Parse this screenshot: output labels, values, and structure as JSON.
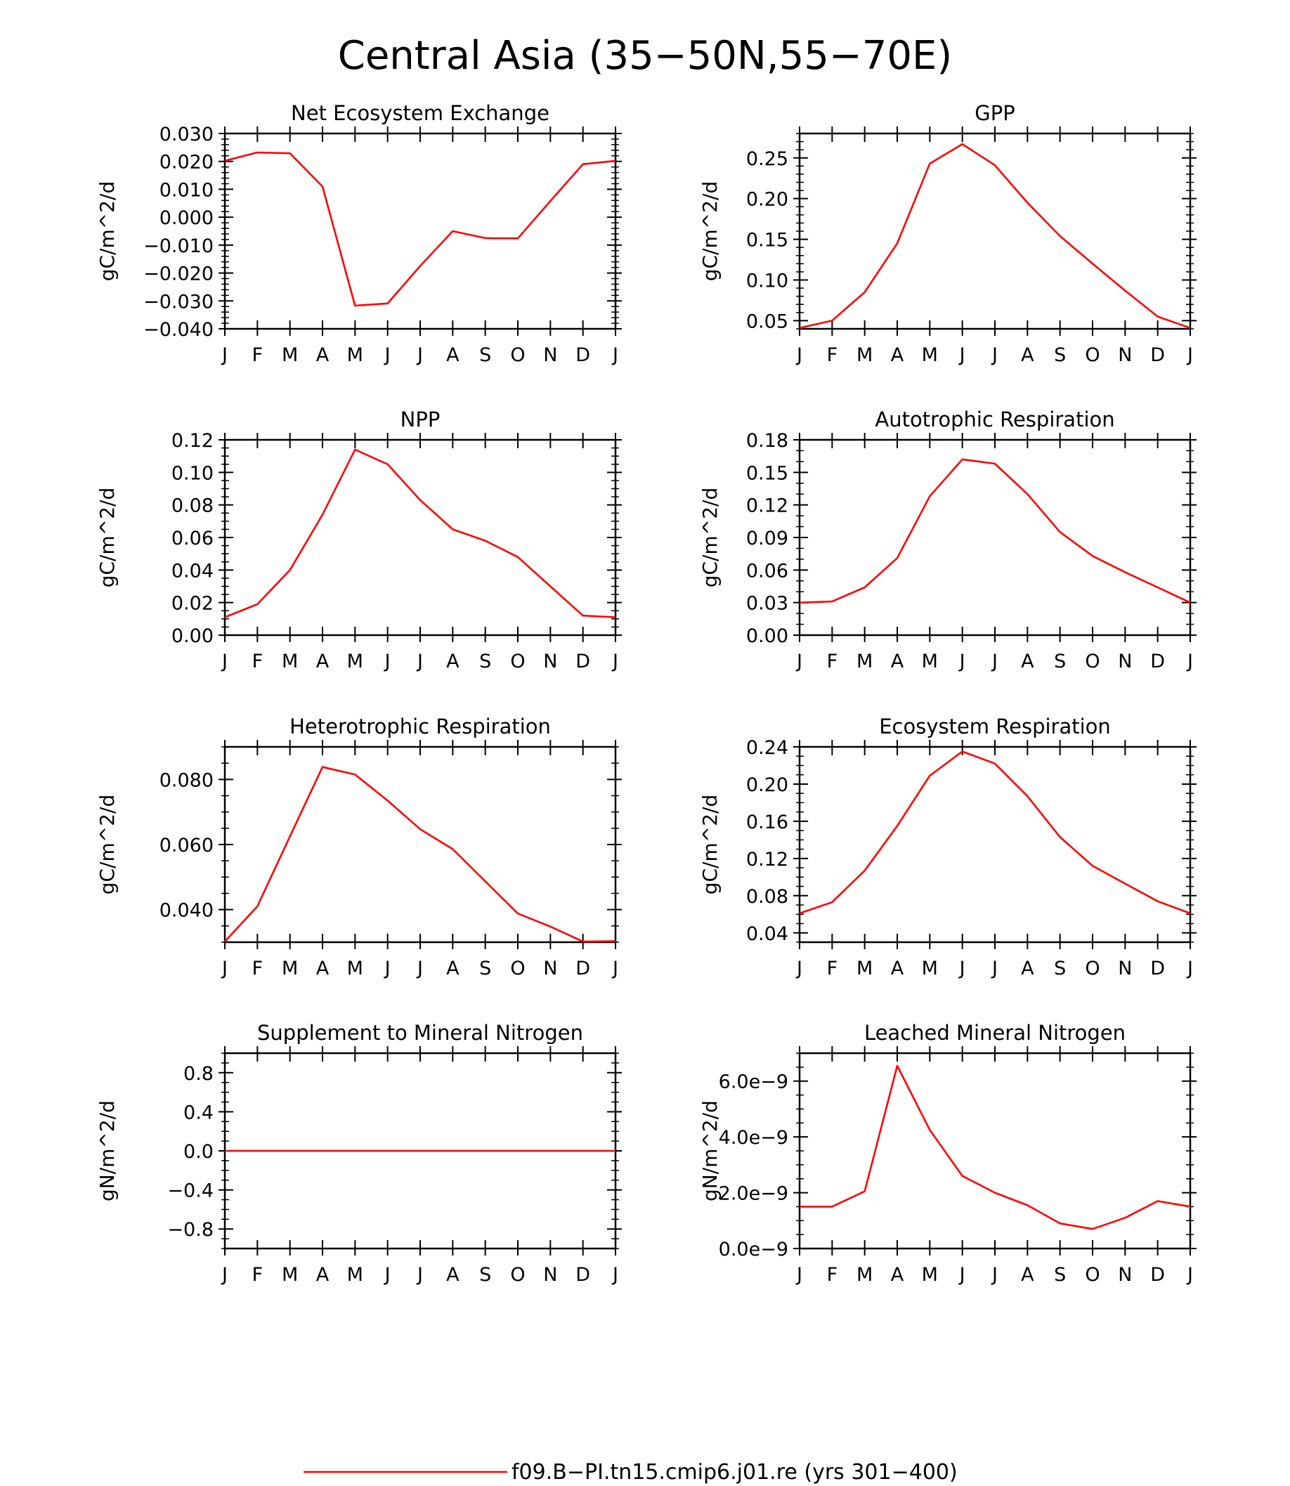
{
  "title": "Central Asia (35−50N,55−70E)",
  "legend": {
    "label": "f09.B−PI.tn15.cmip6.j01.re (yrs 301−400)",
    "color": "#ff0000"
  },
  "chart_data": [
    {
      "type": "line",
      "title": "Net Ecosystem Exchange",
      "ylabel": "gC/m^2/d",
      "categories": [
        "J",
        "F",
        "M",
        "A",
        "M",
        "J",
        "J",
        "A",
        "S",
        "O",
        "N",
        "D",
        "J"
      ],
      "ylim": [
        -0.04,
        0.03
      ],
      "yticks": [
        -0.04,
        -0.03,
        -0.02,
        -0.01,
        0.0,
        0.01,
        0.02,
        0.03
      ],
      "ytick_labels": [
        "−0.040",
        "−0.030",
        "−0.020",
        "−0.010",
        "0.000",
        "0.010",
        "0.020",
        "0.030"
      ],
      "minor_ystep": 0.002,
      "series": [
        {
          "values": [
            0.0202,
            0.0232,
            0.0229,
            0.011,
            -0.0317,
            -0.0309,
            -0.0175,
            -0.005,
            -0.0075,
            -0.0076,
            0.0058,
            0.019,
            0.0202
          ]
        }
      ]
    },
    {
      "type": "line",
      "title": "GPP",
      "ylabel": "gC/m^2/d",
      "categories": [
        "J",
        "F",
        "M",
        "A",
        "M",
        "J",
        "J",
        "A",
        "S",
        "O",
        "N",
        "D",
        "J"
      ],
      "ylim": [
        0.04,
        0.28
      ],
      "yticks": [
        0.05,
        0.1,
        0.15,
        0.2,
        0.25
      ],
      "ytick_labels": [
        "0.05",
        "0.10",
        "0.15",
        "0.20",
        "0.25"
      ],
      "minor_ystep": 0.01,
      "series": [
        {
          "values": [
            0.041,
            0.05,
            0.085,
            0.145,
            0.243,
            0.267,
            0.241,
            0.195,
            0.154,
            0.12,
            0.087,
            0.055,
            0.041
          ]
        }
      ]
    },
    {
      "type": "line",
      "title": "NPP",
      "ylabel": "gC/m^2/d",
      "categories": [
        "J",
        "F",
        "M",
        "A",
        "M",
        "J",
        "J",
        "A",
        "S",
        "O",
        "N",
        "D",
        "J"
      ],
      "ylim": [
        0.0,
        0.12
      ],
      "yticks": [
        0.0,
        0.02,
        0.04,
        0.06,
        0.08,
        0.1,
        0.12
      ],
      "ytick_labels": [
        "0.00",
        "0.02",
        "0.04",
        "0.06",
        "0.08",
        "0.10",
        "0.12"
      ],
      "minor_ystep": 0.005,
      "series": [
        {
          "values": [
            0.011,
            0.019,
            0.04,
            0.074,
            0.114,
            0.105,
            0.083,
            0.065,
            0.058,
            0.048,
            0.03,
            0.012,
            0.011
          ]
        }
      ]
    },
    {
      "type": "line",
      "title": "Autotrophic Respiration",
      "ylabel": "gC/m^2/d",
      "categories": [
        "J",
        "F",
        "M",
        "A",
        "M",
        "J",
        "J",
        "A",
        "S",
        "O",
        "N",
        "D",
        "J"
      ],
      "ylim": [
        0.0,
        0.18
      ],
      "yticks": [
        0.0,
        0.03,
        0.06,
        0.09,
        0.12,
        0.15,
        0.18
      ],
      "ytick_labels": [
        "0.00",
        "0.03",
        "0.06",
        "0.09",
        "0.12",
        "0.15",
        "0.18"
      ],
      "minor_ystep": 0.01,
      "series": [
        {
          "values": [
            0.03,
            0.031,
            0.044,
            0.071,
            0.128,
            0.162,
            0.158,
            0.13,
            0.095,
            0.073,
            0.058,
            0.044,
            0.03
          ]
        }
      ]
    },
    {
      "type": "line",
      "title": "Heterotrophic Respiration",
      "ylabel": "gC/m^2/d",
      "categories": [
        "J",
        "F",
        "M",
        "A",
        "M",
        "J",
        "J",
        "A",
        "S",
        "O",
        "N",
        "D",
        "J"
      ],
      "ylim": [
        0.03,
        0.09
      ],
      "yticks": [
        0.04,
        0.06,
        0.08
      ],
      "ytick_labels": [
        "0.040",
        "0.060",
        "0.080"
      ],
      "minor_ystep": 0.005,
      "series": [
        {
          "values": [
            0.0302,
            0.041,
            0.0625,
            0.0838,
            0.0815,
            0.0735,
            0.0647,
            0.0586,
            0.0487,
            0.0388,
            0.0348,
            0.0302,
            0.0303
          ]
        }
      ]
    },
    {
      "type": "line",
      "title": "Ecosystem Respiration",
      "ylabel": "gC/m^2/d",
      "categories": [
        "J",
        "F",
        "M",
        "A",
        "M",
        "J",
        "J",
        "A",
        "S",
        "O",
        "N",
        "D",
        "J"
      ],
      "ylim": [
        0.03,
        0.24
      ],
      "yticks": [
        0.04,
        0.08,
        0.12,
        0.16,
        0.2,
        0.24
      ],
      "ytick_labels": [
        "0.04",
        "0.08",
        "0.12",
        "0.16",
        "0.20",
        "0.24"
      ],
      "minor_ystep": 0.01,
      "series": [
        {
          "values": [
            0.061,
            0.073,
            0.107,
            0.155,
            0.209,
            0.235,
            0.222,
            0.187,
            0.143,
            0.112,
            0.093,
            0.074,
            0.061
          ]
        }
      ]
    },
    {
      "type": "line",
      "title": "Supplement to Mineral Nitrogen",
      "ylabel": "gN/m^2/d",
      "categories": [
        "J",
        "F",
        "M",
        "A",
        "M",
        "J",
        "J",
        "A",
        "S",
        "O",
        "N",
        "D",
        "J"
      ],
      "ylim": [
        -1.0,
        1.0
      ],
      "yticks": [
        -0.8,
        -0.4,
        0.0,
        0.4,
        0.8
      ],
      "ytick_labels": [
        "−0.8",
        "−0.4",
        "0.0",
        "0.4",
        "0.8"
      ],
      "minor_ystep": 0.1,
      "series": [
        {
          "values": [
            0,
            0,
            0,
            0,
            0,
            0,
            0,
            0,
            0,
            0,
            0,
            0,
            0
          ]
        }
      ]
    },
    {
      "type": "line",
      "title": "Leached Mineral Nitrogen",
      "ylabel": "gN/m^2/d",
      "categories": [
        "J",
        "F",
        "M",
        "A",
        "M",
        "J",
        "J",
        "A",
        "S",
        "O",
        "N",
        "D",
        "J"
      ],
      "ylim": [
        0.0,
        7e-09
      ],
      "yticks": [
        0.0,
        2e-09,
        4e-09,
        6e-09
      ],
      "ytick_labels": [
        "0.0e−9",
        "2.0e−9",
        "4.0e−9",
        "6.0e−9"
      ],
      "minor_ystep": 5e-10,
      "series": [
        {
          "values": [
            1.5e-09,
            1.5e-09,
            2.05e-09,
            6.55e-09,
            4.25e-09,
            2.6e-09,
            2e-09,
            1.55e-09,
            9e-10,
            7e-10,
            1.1e-09,
            1.7e-09,
            1.5e-09
          ]
        }
      ]
    }
  ]
}
